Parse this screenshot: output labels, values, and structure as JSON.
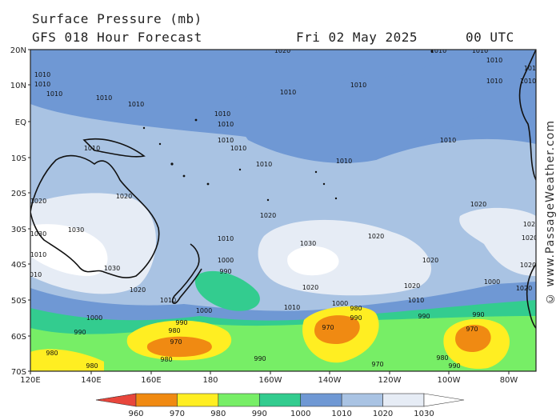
{
  "header": {
    "title": "Surface Pressure (mb)",
    "forecast": "GFS 018 Hour Forecast",
    "date": "Fri 02 May 2025",
    "time": "00 UTC"
  },
  "watermark": "© www.PassageWeather.com",
  "axes": {
    "lat_ticks": [
      "20N",
      "10N",
      "EQ",
      "10S",
      "20S",
      "30S",
      "40S",
      "50S",
      "60S",
      "70S"
    ],
    "lon_ticks": [
      "120E",
      "140E",
      "160E",
      "180",
      "160W",
      "140W",
      "120W",
      "100W",
      "80W"
    ]
  },
  "legend": {
    "labels": [
      "960",
      "970",
      "980",
      "990",
      "1000",
      "1010",
      "1020",
      "1030"
    ],
    "colors": [
      "#e8463c",
      "#f08a12",
      "#ffee22",
      "#77ee66",
      "#33cc8f",
      "#6f98d4",
      "#a9c3e3",
      "#e6ecf5",
      "#ffffff"
    ]
  },
  "isobar_labels": [
    {
      "text": "1020"
    },
    {
      "text": "1010"
    },
    {
      "text": "1010"
    },
    {
      "text": "1010"
    },
    {
      "text": "1010"
    },
    {
      "text": "1010"
    },
    {
      "text": "1010"
    },
    {
      "text": "1010"
    },
    {
      "text": "1010"
    },
    {
      "text": "1010"
    },
    {
      "text": "1010"
    },
    {
      "text": "1010"
    },
    {
      "text": "1010"
    },
    {
      "text": "1010"
    },
    {
      "text": "1010"
    },
    {
      "text": "1010"
    },
    {
      "text": "1010"
    },
    {
      "text": "1010"
    },
    {
      "text": "1010"
    },
    {
      "text": "1010"
    },
    {
      "text": "1010"
    },
    {
      "text": "1020"
    },
    {
      "text": "1020"
    },
    {
      "text": "1020"
    },
    {
      "text": "1020"
    },
    {
      "text": "1030"
    },
    {
      "text": "1030"
    },
    {
      "text": "1030"
    },
    {
      "text": "1020"
    },
    {
      "text": "1020"
    },
    {
      "text": "1020"
    },
    {
      "text": "1020"
    },
    {
      "text": "1020"
    },
    {
      "text": "1030"
    },
    {
      "text": "1020"
    },
    {
      "text": "1020"
    },
    {
      "text": "1010"
    },
    {
      "text": "1010"
    },
    {
      "text": "1000"
    },
    {
      "text": "990"
    },
    {
      "text": "1010"
    },
    {
      "text": "1000"
    },
    {
      "text": "1000"
    },
    {
      "text": "990"
    },
    {
      "text": "980"
    },
    {
      "text": "970"
    },
    {
      "text": "980"
    },
    {
      "text": "990"
    },
    {
      "text": "980"
    },
    {
      "text": "980"
    },
    {
      "text": "990"
    },
    {
      "text": "970"
    },
    {
      "text": "980"
    },
    {
      "text": "990"
    },
    {
      "text": "970"
    },
    {
      "text": "990"
    },
    {
      "text": "990"
    },
    {
      "text": "1000"
    },
    {
      "text": "1010"
    },
    {
      "text": "980"
    },
    {
      "text": "970"
    },
    {
      "text": "990"
    },
    {
      "text": "1000"
    },
    {
      "text": "1020"
    },
    {
      "text": "1020"
    },
    {
      "text": "1010"
    },
    {
      "text": "1010"
    },
    {
      "text": "1010"
    }
  ]
}
